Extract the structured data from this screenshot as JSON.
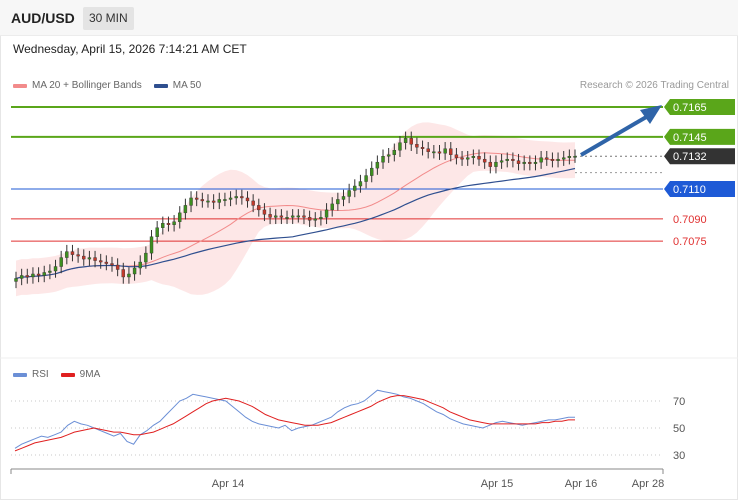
{
  "header": {
    "symbol": "AUD/USD",
    "timeframe": "30 MIN"
  },
  "datetime": "Wednesday, April 15, 2026 7:14:21 AM CET",
  "legend": {
    "ma20_label": "MA 20 + Bollinger Bands",
    "ma50_label": "MA 50",
    "ma20_color": "#f28b8b",
    "ma50_color": "#2f4f8f",
    "credit": "Research © 2026 Trading Central"
  },
  "rsi_legend": {
    "rsi_label": "RSI",
    "ma_label": "9MA",
    "rsi_color": "#6b8fd6",
    "ma_color": "#e02020"
  },
  "chart_data": [
    {
      "type": "candlestick",
      "title": "AUD/USD",
      "timeframe": "30 MIN",
      "x_ticks": [
        "Apr 14",
        "Apr 15",
        "Apr 16",
        "Apr 28"
      ],
      "close": [
        0.705,
        0.7052,
        0.7051,
        0.7053,
        0.7052,
        0.7054,
        0.7055,
        0.7058,
        0.7064,
        0.7068,
        0.7066,
        0.7065,
        0.7063,
        0.7064,
        0.7062,
        0.7061,
        0.706,
        0.7059,
        0.7056,
        0.7051,
        0.7053,
        0.7057,
        0.7061,
        0.7067,
        0.7078,
        0.7084,
        0.7087,
        0.7086,
        0.7088,
        0.7094,
        0.7099,
        0.7104,
        0.7103,
        0.7102,
        0.7102,
        0.7101,
        0.7103,
        0.7103,
        0.7104,
        0.7105,
        0.7104,
        0.7102,
        0.7099,
        0.7096,
        0.7093,
        0.7091,
        0.7092,
        0.7091,
        0.7091,
        0.7092,
        0.7092,
        0.7091,
        0.7089,
        0.709,
        0.7091,
        0.7096,
        0.71,
        0.7103,
        0.7105,
        0.7109,
        0.7112,
        0.7115,
        0.7119,
        0.7124,
        0.7128,
        0.7132,
        0.7133,
        0.7136,
        0.7141,
        0.7144,
        0.714,
        0.7138,
        0.7137,
        0.7135,
        0.7135,
        0.7134,
        0.7137,
        0.7133,
        0.7131,
        0.713,
        0.7131,
        0.7132,
        0.713,
        0.7128,
        0.7125,
        0.7128,
        0.7129,
        0.713,
        0.7129,
        0.7127,
        0.7128,
        0.7127,
        0.7128,
        0.7131,
        0.713,
        0.7129,
        0.713,
        0.7131,
        0.7132,
        0.7132
      ],
      "levels": [
        {
          "value": "0.7165",
          "role": "target",
          "color": "#5aa61a"
        },
        {
          "value": "0.7145",
          "role": "resistance",
          "color": "#5aa61a"
        },
        {
          "value": "0.7132",
          "role": "last",
          "color": "#333333"
        },
        {
          "value": "0.7110",
          "role": "pivot",
          "color": "#1e5ad6"
        },
        {
          "value": "0.7090",
          "role": "support",
          "color": "#e03030"
        },
        {
          "value": "0.7075",
          "role": "support",
          "color": "#e03030"
        }
      ],
      "ylim": [
        0.704,
        0.7168
      ]
    },
    {
      "type": "line",
      "title": "RSI",
      "y_ticks": [
        "70",
        "50",
        "30"
      ],
      "ylim": [
        20,
        85
      ],
      "series": [
        {
          "name": "RSI",
          "values": [
            35,
            38,
            40,
            42,
            44,
            43,
            45,
            47,
            52,
            55,
            53,
            52,
            50,
            48,
            46,
            44,
            46,
            40,
            38,
            45,
            48,
            52,
            55,
            60,
            65,
            70,
            72,
            75,
            74,
            73,
            72,
            71,
            70,
            66,
            62,
            58,
            55,
            53,
            52,
            51,
            50,
            52,
            48,
            50,
            51,
            52,
            54,
            56,
            58,
            62,
            65,
            67,
            68,
            70,
            74,
            78,
            77,
            76,
            75,
            73,
            72,
            70,
            68,
            65,
            62,
            60,
            57,
            55,
            53,
            52,
            51,
            50,
            52,
            54,
            55,
            54,
            53,
            52,
            53,
            54,
            55,
            56,
            56,
            57,
            58,
            58
          ]
        },
        {
          "name": "9MA",
          "values": [
            33,
            35,
            37,
            39,
            40,
            41,
            42,
            43,
            45,
            47,
            48,
            49,
            50,
            49,
            48,
            47,
            47,
            46,
            45,
            45,
            46,
            47,
            49,
            51,
            53,
            56,
            59,
            62,
            65,
            68,
            70,
            71,
            72,
            71,
            70,
            68,
            66,
            63,
            60,
            58,
            56,
            55,
            54,
            53,
            52,
            52,
            52,
            53,
            54,
            56,
            58,
            60,
            62,
            64,
            66,
            69,
            71,
            73,
            74,
            74,
            73,
            72,
            71,
            69,
            67,
            65,
            62,
            60,
            58,
            56,
            55,
            54,
            53,
            53,
            53,
            53,
            53,
            53,
            53,
            53,
            54,
            54,
            55,
            55,
            56,
            56
          ]
        }
      ]
    }
  ]
}
